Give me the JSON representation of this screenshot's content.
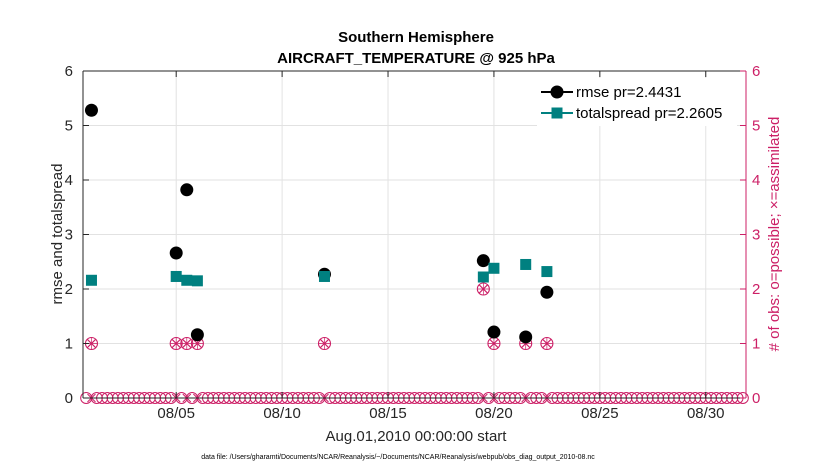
{
  "chart_data": {
    "type": "scatter",
    "title": "Southern Hemisphere",
    "subtitle": "AIRCRAFT_TEMPERATURE @ 925 hPa",
    "xlabel": "Aug.01,2010 00:00:00 start",
    "ylabel": "rmse and totalspread",
    "ylabel_right": "# of obs: o=possible; ×=assimilated",
    "xlim": [
      0.6,
      31.9
    ],
    "ylim": [
      0,
      6
    ],
    "ylim_right": [
      0,
      6
    ],
    "x_ticks": [
      {
        "value": 5,
        "label": "08/05"
      },
      {
        "value": 10,
        "label": "08/10"
      },
      {
        "value": 15,
        "label": "08/15"
      },
      {
        "value": 20,
        "label": "08/20"
      },
      {
        "value": 25,
        "label": "08/25"
      },
      {
        "value": 30,
        "label": "08/30"
      }
    ],
    "y_ticks": [
      "0",
      "1",
      "2",
      "3",
      "4",
      "5",
      "6"
    ],
    "y_ticks_right": [
      "0",
      "1",
      "2",
      "3",
      "4",
      "5",
      "6"
    ],
    "grid": true,
    "legend_position": "top-right",
    "colors": {
      "rmse": "#000000",
      "totalspread": "#008080",
      "obs": "#cc1f66"
    },
    "series": [
      {
        "name": "rmse pr=2.4431",
        "marker": "circle",
        "x": [
          1.0,
          5.0,
          5.5,
          6.0,
          12.0,
          19.5,
          20.0,
          21.5,
          22.5
        ],
        "values": [
          5.28,
          2.66,
          3.82,
          1.16,
          2.27,
          2.52,
          1.21,
          1.12,
          1.94
        ]
      },
      {
        "name": "totalspread pr=2.2605",
        "marker": "square",
        "x": [
          1.0,
          5.0,
          5.5,
          6.0,
          12.0,
          19.5,
          20.0,
          21.5,
          22.5
        ],
        "values": [
          2.16,
          2.23,
          2.16,
          2.15,
          2.23,
          2.22,
          2.38,
          2.45,
          2.32
        ]
      },
      {
        "name": "obs possible / assimilated",
        "marker": "circle-x",
        "x": [
          1.0,
          5.0,
          5.5,
          6.0,
          12.0,
          19.5,
          20.0,
          21.5,
          22.5
        ],
        "values": [
          1,
          1,
          1,
          1,
          1,
          2,
          1,
          1,
          1
        ]
      }
    ],
    "zero_obs_marker_interval_days": 0.25
  },
  "footnote": "data file: /Users/gharamti/Documents/NCAR/Reanalysis/~/Documents/NCAR/Reanalysis/webpub/obs_diag_output_2010-08.nc"
}
